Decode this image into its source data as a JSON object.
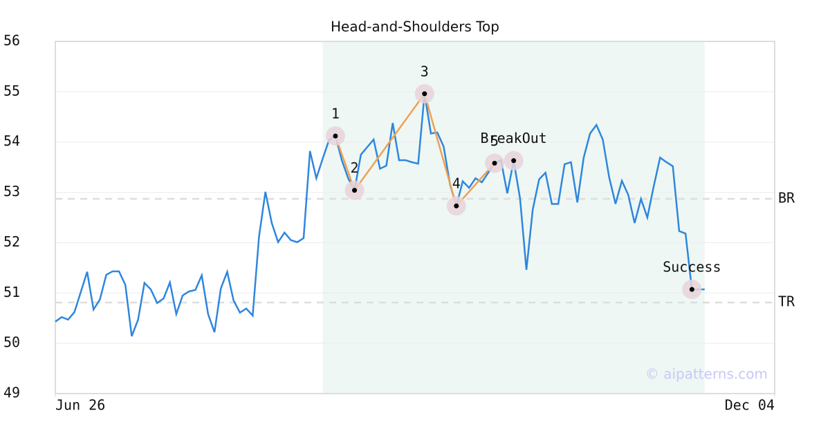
{
  "chart_data": {
    "type": "line",
    "title": "Head-and-Shoulders Top",
    "x": [
      0,
      1,
      2,
      3,
      4,
      5,
      6,
      7,
      8,
      9,
      10,
      11,
      12,
      13,
      14,
      15,
      16,
      17,
      18,
      19,
      20,
      21,
      22,
      23,
      24,
      25,
      26,
      27,
      28,
      29,
      30,
      31,
      32,
      33,
      34,
      35,
      36,
      37,
      38,
      39,
      40,
      41,
      42,
      43,
      44,
      45,
      46,
      47,
      48,
      49,
      50,
      51,
      52,
      53,
      54,
      55,
      56,
      57,
      58,
      59,
      60,
      61,
      62,
      63,
      64,
      65,
      66,
      67,
      68,
      69,
      70,
      71,
      72,
      73,
      74,
      75,
      76,
      77,
      78,
      79,
      80,
      81,
      82,
      83,
      84,
      85,
      86,
      87,
      88,
      89,
      90,
      91,
      92,
      93,
      94,
      95,
      96,
      97,
      98,
      99,
      100,
      101,
      102
    ],
    "series": [
      {
        "color": "#2e86de",
        "values": [
          50.43,
          50.52,
          50.47,
          50.62,
          51.02,
          51.42,
          50.67,
          50.87,
          51.36,
          51.43,
          51.43,
          51.16,
          50.14,
          50.47,
          51.2,
          51.07,
          50.8,
          50.89,
          51.21,
          50.58,
          50.95,
          51.03,
          51.06,
          51.35,
          50.58,
          50.22,
          51.09,
          51.42,
          50.85,
          50.61,
          50.69,
          50.55,
          52.12,
          53.01,
          52.39,
          52.01,
          52.2,
          52.05,
          52.01,
          52.09,
          53.82,
          53.28,
          53.67,
          54.04,
          54.12,
          53.64,
          53.28,
          53.04,
          53.75,
          53.9,
          54.05,
          53.47,
          53.53,
          54.38,
          53.64,
          53.64,
          53.6,
          53.57,
          54.96,
          54.17,
          54.19,
          53.91,
          53.16,
          52.73,
          53.22,
          53.09,
          53.28,
          53.2,
          53.39,
          53.58,
          53.64,
          52.98,
          53.63,
          52.88,
          51.46,
          52.66,
          53.26,
          53.39,
          52.77,
          52.77,
          53.56,
          53.6,
          52.8,
          53.69,
          54.17,
          54.34,
          54.05,
          53.3,
          52.77,
          53.23,
          52.95,
          52.39,
          52.87,
          52.5,
          53.12,
          53.69,
          53.6,
          53.52,
          52.23,
          52.18,
          51.07,
          51.07,
          51.07
        ]
      }
    ],
    "xlim": [
      0,
      113
    ],
    "xticks": [
      {
        "value": 0,
        "label": "Jun 26"
      },
      {
        "value": 113,
        "label": "Dec 04"
      }
    ],
    "ylim": [
      49,
      56
    ],
    "yticks": [
      49,
      50,
      51,
      52,
      53,
      54,
      55,
      56
    ],
    "grid": true,
    "highlight": {
      "x_range": [
        42,
        102
      ],
      "color": "#eef7f3"
    },
    "levels": [
      {
        "label": "BR",
        "value": 52.87
      },
      {
        "label": "TR",
        "value": 50.81
      }
    ],
    "pattern": {
      "color": "#f0a050",
      "points": [
        {
          "label": "1",
          "x": 44
        },
        {
          "label": "2",
          "x": 47
        },
        {
          "label": "3",
          "x": 58
        },
        {
          "label": "4",
          "x": 63
        },
        {
          "label": "5",
          "x": 69
        }
      ]
    },
    "signals": [
      {
        "label": "BreakOut",
        "x": 72
      },
      {
        "label": "Success",
        "x": 100
      }
    ],
    "watermark": "© aipatterns.com"
  }
}
